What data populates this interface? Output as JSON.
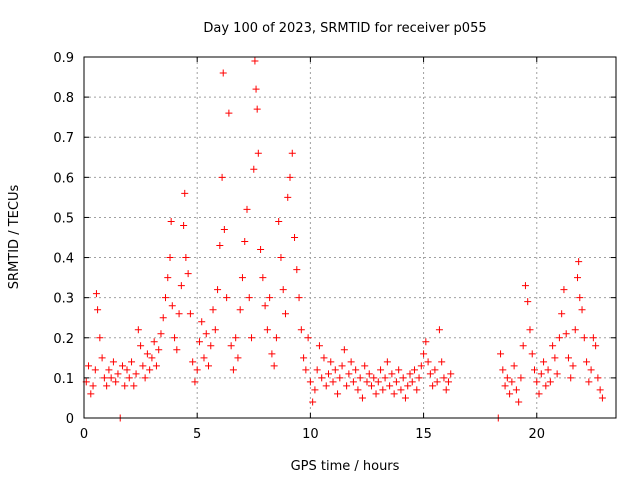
{
  "chart_data": {
    "type": "scatter",
    "title": "Day 100 of 2023, SRMTID for receiver p055",
    "xlabel": "GPS time / hours",
    "ylabel": "SRMTID / TECUs",
    "xlim": [
      0,
      23.5
    ],
    "ylim": [
      0,
      0.9
    ],
    "xticks": [
      0,
      5,
      10,
      15,
      20
    ],
    "yticks": [
      0,
      0.1,
      0.2,
      0.3,
      0.4,
      0.5,
      0.6,
      0.7,
      0.8,
      0.9
    ],
    "grid": true,
    "marker": "+",
    "color": "#ff0000",
    "series": [
      {
        "name": "SRMTID",
        "points": [
          [
            0.1,
            0.09
          ],
          [
            0.2,
            0.13
          ],
          [
            0.3,
            0.06
          ],
          [
            0.4,
            0.08
          ],
          [
            0.5,
            0.12
          ],
          [
            0.55,
            0.31
          ],
          [
            0.6,
            0.27
          ],
          [
            0.7,
            0.2
          ],
          [
            0.8,
            0.15
          ],
          [
            0.9,
            0.1
          ],
          [
            1.0,
            0.08
          ],
          [
            1.1,
            0.12
          ],
          [
            1.2,
            0.1
          ],
          [
            1.3,
            0.14
          ],
          [
            1.4,
            0.09
          ],
          [
            1.5,
            0.11
          ],
          [
            1.6,
            0.0
          ],
          [
            1.7,
            0.13
          ],
          [
            1.8,
            0.08
          ],
          [
            1.9,
            0.12
          ],
          [
            2.0,
            0.1
          ],
          [
            2.1,
            0.14
          ],
          [
            2.2,
            0.08
          ],
          [
            2.3,
            0.11
          ],
          [
            2.4,
            0.22
          ],
          [
            2.5,
            0.18
          ],
          [
            2.6,
            0.13
          ],
          [
            2.7,
            0.1
          ],
          [
            2.8,
            0.16
          ],
          [
            2.9,
            0.12
          ],
          [
            3.0,
            0.15
          ],
          [
            3.1,
            0.19
          ],
          [
            3.2,
            0.13
          ],
          [
            3.3,
            0.17
          ],
          [
            3.4,
            0.21
          ],
          [
            3.5,
            0.25
          ],
          [
            3.6,
            0.3
          ],
          [
            3.7,
            0.35
          ],
          [
            3.8,
            0.4
          ],
          [
            3.85,
            0.49
          ],
          [
            3.9,
            0.28
          ],
          [
            4.0,
            0.2
          ],
          [
            4.1,
            0.17
          ],
          [
            4.2,
            0.26
          ],
          [
            4.3,
            0.33
          ],
          [
            4.4,
            0.48
          ],
          [
            4.45,
            0.56
          ],
          [
            4.5,
            0.4
          ],
          [
            4.6,
            0.36
          ],
          [
            4.7,
            0.26
          ],
          [
            4.8,
            0.14
          ],
          [
            4.9,
            0.09
          ],
          [
            5.0,
            0.12
          ],
          [
            5.1,
            0.19
          ],
          [
            5.2,
            0.24
          ],
          [
            5.3,
            0.15
          ],
          [
            5.4,
            0.21
          ],
          [
            5.5,
            0.13
          ],
          [
            5.6,
            0.18
          ],
          [
            5.7,
            0.27
          ],
          [
            5.8,
            0.22
          ],
          [
            5.9,
            0.32
          ],
          [
            6.0,
            0.43
          ],
          [
            6.1,
            0.6
          ],
          [
            6.15,
            0.86
          ],
          [
            6.2,
            0.47
          ],
          [
            6.3,
            0.3
          ],
          [
            6.4,
            0.76
          ],
          [
            6.5,
            0.18
          ],
          [
            6.6,
            0.12
          ],
          [
            6.7,
            0.2
          ],
          [
            6.8,
            0.15
          ],
          [
            6.9,
            0.27
          ],
          [
            7.0,
            0.35
          ],
          [
            7.1,
            0.44
          ],
          [
            7.2,
            0.52
          ],
          [
            7.3,
            0.3
          ],
          [
            7.4,
            0.2
          ],
          [
            7.5,
            0.62
          ],
          [
            7.55,
            0.89
          ],
          [
            7.6,
            0.82
          ],
          [
            7.65,
            0.77
          ],
          [
            7.7,
            0.66
          ],
          [
            7.8,
            0.42
          ],
          [
            7.9,
            0.35
          ],
          [
            8.0,
            0.28
          ],
          [
            8.1,
            0.22
          ],
          [
            8.2,
            0.3
          ],
          [
            8.3,
            0.16
          ],
          [
            8.4,
            0.13
          ],
          [
            8.5,
            0.2
          ],
          [
            8.6,
            0.49
          ],
          [
            8.7,
            0.4
          ],
          [
            8.8,
            0.32
          ],
          [
            8.9,
            0.26
          ],
          [
            9.0,
            0.55
          ],
          [
            9.1,
            0.6
          ],
          [
            9.2,
            0.66
          ],
          [
            9.3,
            0.45
          ],
          [
            9.4,
            0.37
          ],
          [
            9.5,
            0.3
          ],
          [
            9.6,
            0.22
          ],
          [
            9.7,
            0.15
          ],
          [
            9.8,
            0.12
          ],
          [
            9.9,
            0.2
          ],
          [
            10.0,
            0.09
          ],
          [
            10.1,
            0.04
          ],
          [
            10.2,
            0.07
          ],
          [
            10.3,
            0.12
          ],
          [
            10.4,
            0.18
          ],
          [
            10.5,
            0.1
          ],
          [
            10.6,
            0.15
          ],
          [
            10.7,
            0.08
          ],
          [
            10.8,
            0.11
          ],
          [
            10.9,
            0.14
          ],
          [
            11.0,
            0.09
          ],
          [
            11.1,
            0.12
          ],
          [
            11.2,
            0.06
          ],
          [
            11.3,
            0.1
          ],
          [
            11.4,
            0.13
          ],
          [
            11.5,
            0.17
          ],
          [
            11.6,
            0.08
          ],
          [
            11.7,
            0.11
          ],
          [
            11.8,
            0.14
          ],
          [
            11.9,
            0.09
          ],
          [
            12.0,
            0.12
          ],
          [
            12.1,
            0.07
          ],
          [
            12.2,
            0.1
          ],
          [
            12.3,
            0.05
          ],
          [
            12.4,
            0.13
          ],
          [
            12.5,
            0.09
          ],
          [
            12.6,
            0.11
          ],
          [
            12.7,
            0.08
          ],
          [
            12.8,
            0.1
          ],
          [
            12.9,
            0.06
          ],
          [
            13.0,
            0.09
          ],
          [
            13.1,
            0.12
          ],
          [
            13.2,
            0.07
          ],
          [
            13.3,
            0.1
          ],
          [
            13.4,
            0.14
          ],
          [
            13.5,
            0.08
          ],
          [
            13.6,
            0.11
          ],
          [
            13.7,
            0.06
          ],
          [
            13.8,
            0.09
          ],
          [
            13.9,
            0.12
          ],
          [
            14.0,
            0.07
          ],
          [
            14.1,
            0.1
          ],
          [
            14.2,
            0.05
          ],
          [
            14.3,
            0.08
          ],
          [
            14.4,
            0.11
          ],
          [
            14.5,
            0.09
          ],
          [
            14.6,
            0.12
          ],
          [
            14.7,
            0.07
          ],
          [
            14.8,
            0.1
          ],
          [
            14.9,
            0.13
          ],
          [
            15.0,
            0.16
          ],
          [
            15.1,
            0.19
          ],
          [
            15.2,
            0.14
          ],
          [
            15.3,
            0.11
          ],
          [
            15.4,
            0.08
          ],
          [
            15.5,
            0.12
          ],
          [
            15.6,
            0.09
          ],
          [
            15.7,
            0.22
          ],
          [
            15.8,
            0.14
          ],
          [
            15.9,
            0.1
          ],
          [
            16.0,
            0.07
          ],
          [
            16.1,
            0.09
          ],
          [
            16.2,
            0.11
          ],
          [
            18.3,
            0.0
          ],
          [
            18.4,
            0.16
          ],
          [
            18.5,
            0.12
          ],
          [
            18.6,
            0.08
          ],
          [
            18.7,
            0.1
          ],
          [
            18.8,
            0.06
          ],
          [
            18.9,
            0.09
          ],
          [
            19.0,
            0.13
          ],
          [
            19.1,
            0.07
          ],
          [
            19.2,
            0.04
          ],
          [
            19.3,
            0.1
          ],
          [
            19.4,
            0.18
          ],
          [
            19.5,
            0.33
          ],
          [
            19.6,
            0.29
          ],
          [
            19.7,
            0.22
          ],
          [
            19.8,
            0.16
          ],
          [
            19.9,
            0.12
          ],
          [
            20.0,
            0.09
          ],
          [
            20.1,
            0.06
          ],
          [
            20.2,
            0.11
          ],
          [
            20.3,
            0.14
          ],
          [
            20.4,
            0.08
          ],
          [
            20.5,
            0.12
          ],
          [
            20.6,
            0.09
          ],
          [
            20.7,
            0.18
          ],
          [
            20.8,
            0.15
          ],
          [
            20.9,
            0.11
          ],
          [
            21.0,
            0.2
          ],
          [
            21.1,
            0.26
          ],
          [
            21.2,
            0.32
          ],
          [
            21.3,
            0.21
          ],
          [
            21.4,
            0.15
          ],
          [
            21.5,
            0.1
          ],
          [
            21.6,
            0.13
          ],
          [
            21.7,
            0.22
          ],
          [
            21.8,
            0.35
          ],
          [
            21.85,
            0.39
          ],
          [
            21.9,
            0.3
          ],
          [
            22.0,
            0.27
          ],
          [
            22.1,
            0.2
          ],
          [
            22.2,
            0.14
          ],
          [
            22.3,
            0.09
          ],
          [
            22.4,
            0.12
          ],
          [
            22.5,
            0.2
          ],
          [
            22.6,
            0.18
          ],
          [
            22.7,
            0.1
          ],
          [
            22.8,
            0.07
          ],
          [
            22.9,
            0.05
          ]
        ]
      }
    ]
  }
}
